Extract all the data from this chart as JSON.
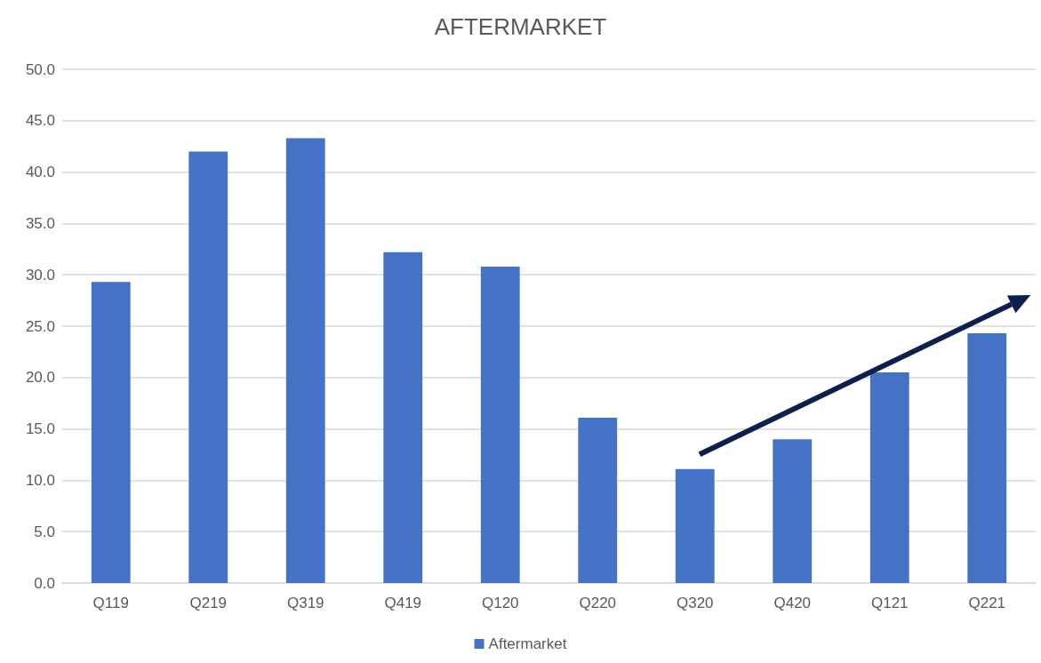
{
  "chart_data": {
    "type": "bar",
    "title": "AFTERMARKET",
    "categories": [
      "Q119",
      "Q219",
      "Q319",
      "Q419",
      "Q120",
      "Q220",
      "Q320",
      "Q420",
      "Q121",
      "Q221"
    ],
    "series": [
      {
        "name": "Aftermarket",
        "color": "#4472c4",
        "values": [
          29.3,
          42.0,
          43.3,
          32.2,
          30.8,
          16.1,
          11.1,
          14.0,
          20.5,
          24.3
        ]
      }
    ],
    "ylim": [
      0,
      50
    ],
    "yticks": [
      {
        "value": 0,
        "label": "0.0"
      },
      {
        "value": 5,
        "label": "5.0"
      },
      {
        "value": 10,
        "label": "10.0"
      },
      {
        "value": 15,
        "label": "15.0"
      },
      {
        "value": 20,
        "label": "20.0"
      },
      {
        "value": 25,
        "label": "25.0"
      },
      {
        "value": 30,
        "label": "30.0"
      },
      {
        "value": 35,
        "label": "35.0"
      },
      {
        "value": 40,
        "label": "40.0"
      },
      {
        "value": 45,
        "label": "45.0"
      },
      {
        "value": 50,
        "label": "50.0"
      }
    ],
    "grid": "y",
    "legend": "bottom"
  }
}
